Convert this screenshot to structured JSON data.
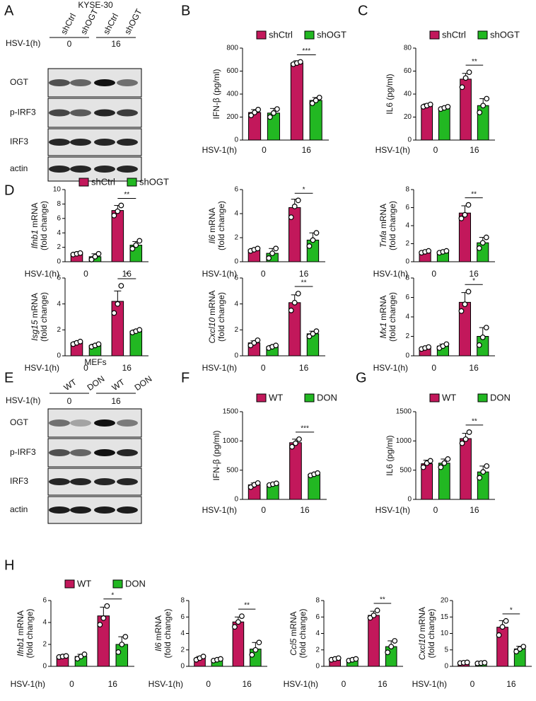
{
  "blots": [
    {
      "panel": "A",
      "title": "KYSE-30",
      "lanes": [
        "shCtrl",
        "shOGT",
        "shCtrl",
        "shOGT"
      ],
      "xlabel": "HSV-1(h)",
      "groups": [
        "0",
        "16"
      ],
      "rows": [
        "OGT",
        "p-IRF3",
        "IRF3",
        "actin"
      ]
    },
    {
      "panel": "E",
      "title": "MEFs",
      "lanes": [
        "WT",
        "DON",
        "WT",
        "DON"
      ],
      "xlabel": "HSV-1(h)",
      "groups": [
        "0",
        "16"
      ],
      "rows": [
        "OGT",
        "p-IRF3",
        "IRF3",
        "actin"
      ]
    }
  ],
  "chart_data": [
    {
      "type": "bar",
      "panel": "B",
      "ylabel": "IFN-β (pg/ml)",
      "xlabel": "HSV-1(h)",
      "categories": [
        "0",
        "16"
      ],
      "ylim": [
        0,
        800
      ],
      "yticks": [
        0,
        200,
        400,
        600,
        800
      ],
      "legend": true,
      "sig": "***",
      "series": [
        {
          "name": "shCtrl",
          "color": "#c2185b",
          "values": [
            240,
            670
          ],
          "errors": [
            25,
            20
          ],
          "points": [
            [
              215,
              240,
              265
            ],
            [
              660,
              670,
              680
            ]
          ]
        },
        {
          "name": "shOGT",
          "color": "#22b822",
          "values": [
            235,
            345
          ],
          "errors": [
            40,
            25
          ],
          "points": [
            [
              200,
              235,
              270
            ],
            [
              320,
              345,
              370
            ]
          ]
        }
      ]
    },
    {
      "type": "bar",
      "panel": "C",
      "ylabel": "IL6 (pg/ml)",
      "xlabel": "HSV-1(h)",
      "categories": [
        "0",
        "16"
      ],
      "ylim": [
        0,
        80
      ],
      "yticks": [
        0,
        20,
        40,
        60,
        80
      ],
      "legend": true,
      "sig": "**",
      "series": [
        {
          "name": "shCtrl",
          "color": "#c2185b",
          "values": [
            30,
            53
          ],
          "errors": [
            1.5,
            5
          ],
          "points": [
            [
              29,
              30,
              31
            ],
            [
              46,
              54,
              59
            ]
          ]
        },
        {
          "name": "shOGT",
          "color": "#22b822",
          "values": [
            28,
            30
          ],
          "errors": [
            1,
            6
          ],
          "points": [
            [
              27,
              28,
              29
            ],
            [
              24,
              30,
              36
            ]
          ]
        }
      ]
    },
    {
      "type": "bar",
      "panel": "D",
      "gene": "Ifnb1",
      "ylabel": "mRNA",
      "ylabel2": "(fold change)",
      "xlabel": "HSV-1(h)",
      "categories": [
        "0",
        "16"
      ],
      "ylim": [
        0,
        10
      ],
      "yticks": [
        0,
        2,
        4,
        6,
        8,
        10
      ],
      "legend": true,
      "sig": "**",
      "series": [
        {
          "name": "shCtrl",
          "color": "#c2185b",
          "values": [
            1.1,
            7.1
          ],
          "errors": [
            0.1,
            0.7
          ],
          "points": [
            [
              1,
              1.1,
              1.2
            ],
            [
              6.4,
              7,
              7.8
            ]
          ]
        },
        {
          "name": "shOGT",
          "color": "#22b822",
          "values": [
            0.7,
            2.3
          ],
          "errors": [
            0.4,
            0.5
          ],
          "points": [
            [
              0.3,
              0.7,
              1.1
            ],
            [
              1.8,
              2.3,
              2.9
            ]
          ]
        }
      ]
    },
    {
      "type": "bar",
      "gene": "Il6",
      "ylabel": "mRNA",
      "ylabel2": "(fold change)",
      "xlabel": "HSV-1(h)",
      "categories": [
        "0",
        "16"
      ],
      "ylim": [
        0,
        6
      ],
      "yticks": [
        0,
        2,
        4,
        6
      ],
      "sig": "*",
      "series": [
        {
          "name": "shCtrl",
          "color": "#c2185b",
          "values": [
            1,
            4.5
          ],
          "errors": [
            0.1,
            0.7
          ],
          "points": [
            [
              0.9,
              1,
              1.1
            ],
            [
              3.7,
              4.6,
              5.1
            ]
          ]
        },
        {
          "name": "shOGT",
          "color": "#22b822",
          "values": [
            0.7,
            1.8
          ],
          "errors": [
            0.4,
            0.6
          ],
          "points": [
            [
              0.3,
              0.7,
              1.1
            ],
            [
              1.3,
              1.8,
              2.4
            ]
          ]
        }
      ]
    },
    {
      "type": "bar",
      "gene": "Tnfa",
      "ylabel": "mRNA",
      "ylabel2": "(fold change)",
      "xlabel": "HSV-1(h)",
      "categories": [
        "0",
        "16"
      ],
      "ylim": [
        0,
        8
      ],
      "yticks": [
        0,
        2,
        4,
        6,
        8
      ],
      "sig": "**",
      "series": [
        {
          "name": "shCtrl",
          "color": "#c2185b",
          "values": [
            1.1,
            5.4
          ],
          "errors": [
            0.1,
            0.8
          ],
          "points": [
            [
              1,
              1.1,
              1.2
            ],
            [
              4.8,
              5.2,
              6.3
            ]
          ]
        },
        {
          "name": "shOGT",
          "color": "#22b822",
          "values": [
            1.1,
            2.1
          ],
          "errors": [
            0.1,
            0.6
          ],
          "points": [
            [
              1,
              1.1,
              1.2
            ],
            [
              1.5,
              2.1,
              2.7
            ]
          ]
        }
      ]
    },
    {
      "type": "bar",
      "gene": "Isg15",
      "ylabel": "mRNA",
      "ylabel2": "(fold change)",
      "xlabel": "HSV-1(h)",
      "categories": [
        "0",
        "16"
      ],
      "ylim": [
        0,
        6
      ],
      "yticks": [
        0,
        2,
        4,
        6
      ],
      "sig": "*",
      "series": [
        {
          "name": "shCtrl",
          "color": "#c2185b",
          "values": [
            1,
            4.2
          ],
          "errors": [
            0.1,
            0.8
          ],
          "points": [
            [
              0.9,
              1,
              1.1
            ],
            [
              3.3,
              4,
              5.4
            ]
          ]
        },
        {
          "name": "shOGT",
          "color": "#22b822",
          "values": [
            0.8,
            1.9
          ],
          "errors": [
            0.1,
            0.1
          ],
          "points": [
            [
              0.7,
              0.8,
              0.9
            ],
            [
              1.8,
              1.9,
              2
            ]
          ]
        }
      ]
    },
    {
      "type": "bar",
      "gene": "Cxcl10",
      "ylabel": "mRNA",
      "ylabel2": "(fold change)",
      "xlabel": "HSV-1(h)",
      "categories": [
        "0",
        "16"
      ],
      "ylim": [
        0,
        6
      ],
      "yticks": [
        0,
        2,
        4,
        6
      ],
      "sig": "**",
      "series": [
        {
          "name": "shCtrl",
          "color": "#c2185b",
          "values": [
            1,
            4.1
          ],
          "errors": [
            0.15,
            0.6
          ],
          "points": [
            [
              0.8,
              1,
              1.2
            ],
            [
              3.5,
              4.1,
              4.8
            ]
          ]
        },
        {
          "name": "shOGT",
          "color": "#22b822",
          "values": [
            0.7,
            1.7
          ],
          "errors": [
            0.1,
            0.2
          ],
          "points": [
            [
              0.6,
              0.7,
              0.8
            ],
            [
              1.5,
              1.7,
              1.9
            ]
          ]
        }
      ]
    },
    {
      "type": "bar",
      "gene": "Mx1",
      "ylabel": "mRNA",
      "ylabel2": "(fold change)",
      "xlabel": "HSV-1(h)",
      "categories": [
        "0",
        "16"
      ],
      "ylim": [
        0,
        8
      ],
      "yticks": [
        0,
        2,
        4,
        6,
        8
      ],
      "sig": "*",
      "series": [
        {
          "name": "shCtrl",
          "color": "#c2185b",
          "values": [
            0.8,
            5.5
          ],
          "errors": [
            0.1,
            1
          ],
          "points": [
            [
              0.7,
              0.8,
              0.9
            ],
            [
              4.6,
              5.3,
              6.6
            ]
          ]
        },
        {
          "name": "shOGT",
          "color": "#22b822",
          "values": [
            1,
            2
          ],
          "errors": [
            0.2,
            0.9
          ],
          "points": [
            [
              0.8,
              1,
              1.2
            ],
            [
              1.1,
              1.9,
              2.9
            ]
          ]
        }
      ]
    },
    {
      "type": "bar",
      "panel": "F",
      "ylabel": "IFN-β (pg/ml)",
      "xlabel": "HSV-1(h)",
      "categories": [
        "0",
        "16"
      ],
      "ylim": [
        0,
        1500
      ],
      "yticks": [
        0,
        500,
        1000,
        1500
      ],
      "legend": true,
      "sig": "***",
      "series": [
        {
          "name": "WT",
          "color": "#c2185b",
          "values": [
            250,
            970
          ],
          "errors": [
            30,
            60
          ],
          "points": [
            [
              210,
              250,
              280
            ],
            [
              900,
              960,
              1030
            ]
          ]
        },
        {
          "name": "DON",
          "color": "#22b822",
          "values": [
            260,
            430
          ],
          "errors": [
            15,
            20
          ],
          "points": [
            [
              245,
              260,
              275
            ],
            [
              410,
              430,
              450
            ]
          ]
        }
      ]
    },
    {
      "type": "bar",
      "panel": "G",
      "ylabel": "IL6 (pg/ml)",
      "xlabel": "HSV-1(h)",
      "categories": [
        "0",
        "16"
      ],
      "ylim": [
        0,
        1500
      ],
      "yticks": [
        0,
        500,
        1000,
        1500
      ],
      "legend": true,
      "sig": "**",
      "series": [
        {
          "name": "WT",
          "color": "#c2185b",
          "values": [
            610,
            1040
          ],
          "errors": [
            60,
            90
          ],
          "points": [
            [
              550,
              620,
              660
            ],
            [
              960,
              1030,
              1150
            ]
          ]
        },
        {
          "name": "DON",
          "color": "#22b822",
          "values": [
            620,
            470
          ],
          "errors": [
            70,
            100
          ],
          "points": [
            [
              550,
              620,
              690
            ],
            [
              370,
              470,
              570
            ]
          ]
        }
      ]
    },
    {
      "type": "bar",
      "panel": "H",
      "gene": "Ifnb1",
      "ylabel": "mRNA",
      "ylabel2": "(fold change)",
      "xlabel": "HSV-1(h)",
      "categories": [
        "0",
        "16"
      ],
      "ylim": [
        0,
        6
      ],
      "yticks": [
        0,
        2,
        4,
        6
      ],
      "legend": true,
      "sig": "*",
      "series": [
        {
          "name": "WT",
          "color": "#c2185b",
          "values": [
            0.9,
            4.6
          ],
          "errors": [
            0.05,
            0.8
          ],
          "points": [
            [
              0.85,
              0.9,
              0.95
            ],
            [
              3.8,
              4.4,
              5.5
            ]
          ]
        },
        {
          "name": "DON",
          "color": "#22b822",
          "values": [
            0.9,
            2
          ],
          "errors": [
            0.2,
            0.7
          ],
          "points": [
            [
              0.7,
              0.9,
              1.1
            ],
            [
              1.3,
              2,
              2.7
            ]
          ]
        }
      ]
    },
    {
      "type": "bar",
      "gene": "Il6",
      "ylabel": "mRNA",
      "ylabel2": "(fold change)",
      "xlabel": "HSV-1(h)",
      "categories": [
        "0",
        "16"
      ],
      "ylim": [
        0,
        8
      ],
      "yticks": [
        0,
        2,
        4,
        6,
        8
      ],
      "sig": "**",
      "series": [
        {
          "name": "WT",
          "color": "#c2185b",
          "values": [
            1,
            5.4
          ],
          "errors": [
            0.2,
            0.6
          ],
          "points": [
            [
              0.8,
              1,
              1.2
            ],
            [
              4.8,
              5.4,
              6.1
            ]
          ]
        },
        {
          "name": "DON",
          "color": "#22b822",
          "values": [
            0.8,
            2.1
          ],
          "errors": [
            0.1,
            0.8
          ],
          "points": [
            [
              0.7,
              0.8,
              0.9
            ],
            [
              1.4,
              2,
              2.9
            ]
          ]
        }
      ]
    },
    {
      "type": "bar",
      "gene": "Ccl5",
      "ylabel": "mRNA",
      "ylabel2": "(fold change)",
      "xlabel": "HSV-1(h)",
      "categories": [
        "0",
        "16"
      ],
      "ylim": [
        0,
        8
      ],
      "yticks": [
        0,
        2,
        4,
        6,
        8
      ],
      "sig": "**",
      "series": [
        {
          "name": "WT",
          "color": "#c2185b",
          "values": [
            0.9,
            6.2
          ],
          "errors": [
            0.1,
            0.5
          ],
          "points": [
            [
              0.8,
              0.9,
              1
            ],
            [
              5.9,
              6.2,
              6.8
            ]
          ]
        },
        {
          "name": "DON",
          "color": "#22b822",
          "values": [
            0.8,
            2.4
          ],
          "errors": [
            0.1,
            0.7
          ],
          "points": [
            [
              0.7,
              0.8,
              0.9
            ],
            [
              1.7,
              2.4,
              3.1
            ]
          ]
        }
      ]
    },
    {
      "type": "bar",
      "gene": "Cxcl10",
      "ylabel": "mRNA",
      "ylabel2": "(fold change)",
      "xlabel": "HSV-1(h)",
      "categories": [
        "0",
        "16"
      ],
      "ylim": [
        0,
        20
      ],
      "yticks": [
        0,
        5,
        10,
        15,
        20
      ],
      "sig": "*",
      "series": [
        {
          "name": "WT",
          "color": "#c2185b",
          "values": [
            1.1,
            11.9
          ],
          "errors": [
            0.1,
            2
          ],
          "points": [
            [
              1,
              1.1,
              1.2
            ],
            [
              9.5,
              12,
              13.8
            ]
          ]
        },
        {
          "name": "DON",
          "color": "#22b822",
          "values": [
            1,
            5.3
          ],
          "errors": [
            0.1,
            0.8
          ],
          "points": [
            [
              0.9,
              1,
              1.1
            ],
            [
              4.5,
              5.3,
              6
            ]
          ]
        }
      ]
    }
  ]
}
